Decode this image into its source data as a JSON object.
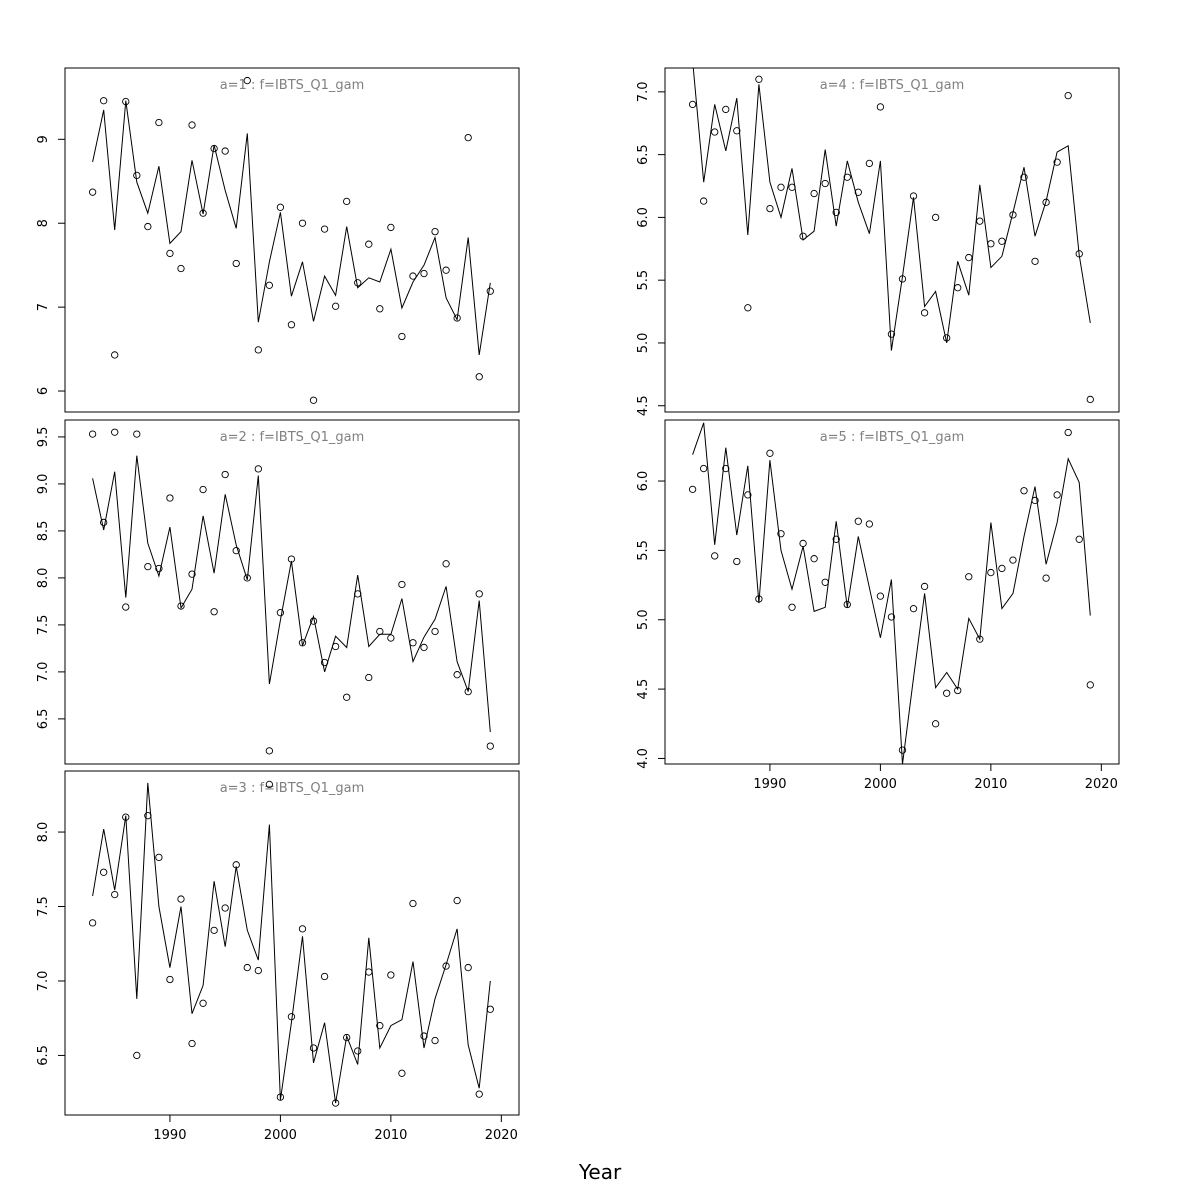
{
  "chart_data": {
    "type": "line",
    "xlabel": "Year",
    "xlim": [
      1980.5,
      2021.6
    ],
    "x_ticks": [
      1990,
      2000,
      2010,
      2020
    ],
    "x": [
      1983,
      1984,
      1985,
      1986,
      1987,
      1988,
      1989,
      1990,
      1991,
      1992,
      1993,
      1994,
      1995,
      1996,
      1997,
      1998,
      1999,
      2000,
      2001,
      2002,
      2003,
      2004,
      2005,
      2006,
      2007,
      2008,
      2009,
      2010,
      2011,
      2012,
      2013,
      2014,
      2015,
      2016,
      2017,
      2018,
      2019
    ],
    "panels": [
      {
        "title": "a=1  :  f=IBTS_Q1_gam",
        "ylim": [
          5.75,
          9.85
        ],
        "y_ticks": [
          "6",
          "7",
          "8",
          "9"
        ],
        "observed": [
          8.37,
          9.46,
          6.43,
          9.45,
          8.57,
          7.96,
          9.2,
          7.64,
          7.46,
          9.17,
          8.12,
          8.89,
          8.86,
          7.52,
          9.7,
          6.49,
          7.26,
          8.19,
          6.79,
          8.0,
          5.89,
          7.93,
          7.01,
          8.26,
          7.29,
          7.75,
          6.98,
          7.95,
          6.65,
          7.37,
          7.4,
          7.9,
          7.44,
          6.87,
          9.02,
          6.17,
          7.19
        ],
        "fitted": [
          8.73,
          9.35,
          7.92,
          9.46,
          8.49,
          8.12,
          8.68,
          7.76,
          7.9,
          8.75,
          8.11,
          8.93,
          8.39,
          7.94,
          9.07,
          6.82,
          7.54,
          8.13,
          7.13,
          7.54,
          6.83,
          7.37,
          7.14,
          7.96,
          7.23,
          7.35,
          7.3,
          7.69,
          6.99,
          7.3,
          7.5,
          7.83,
          7.11,
          6.85,
          7.83,
          6.43,
          7.29
        ]
      },
      {
        "title": "a=2  :  f=IBTS_Q1_gam",
        "ylim": [
          6.02,
          9.68
        ],
        "y_ticks": [
          "6.5",
          "7.0",
          "7.5",
          "8.0",
          "8.5",
          "9.0",
          "9.5"
        ],
        "observed": [
          9.53,
          8.59,
          9.55,
          7.69,
          9.53,
          8.12,
          8.1,
          8.85,
          7.7,
          8.04,
          8.94,
          7.64,
          9.1,
          8.29,
          8.0,
          9.16,
          6.16,
          7.63,
          8.2,
          7.31,
          7.54,
          7.1,
          7.27,
          6.73,
          7.83,
          6.94,
          7.43,
          7.36,
          7.93,
          7.31,
          7.26,
          7.43,
          8.15,
          6.97,
          6.79,
          7.83,
          6.21
        ],
        "fitted": [
          9.06,
          8.51,
          9.13,
          7.79,
          9.3,
          8.37,
          8.02,
          8.54,
          7.68,
          7.88,
          8.66,
          8.05,
          8.89,
          8.35,
          7.98,
          9.09,
          6.87,
          7.55,
          8.18,
          7.28,
          7.59,
          7.0,
          7.38,
          7.26,
          8.03,
          7.27,
          7.4,
          7.4,
          7.78,
          7.11,
          7.37,
          7.56,
          7.91,
          7.11,
          6.79,
          7.76,
          6.36
        ]
      },
      {
        "title": "a=3  :  f=IBTS_Q1_gam",
        "ylim": [
          6.1,
          8.41
        ],
        "y_ticks": [
          "6.5",
          "7.0",
          "7.5",
          "8.0"
        ],
        "observed": [
          7.39,
          7.73,
          7.58,
          8.1,
          6.5,
          8.11,
          7.83,
          7.01,
          7.55,
          6.58,
          6.85,
          7.34,
          7.49,
          7.78,
          7.09,
          7.07,
          8.32,
          6.22,
          6.76,
          7.35,
          6.55,
          7.03,
          6.18,
          6.62,
          6.53,
          7.06,
          6.7,
          7.04,
          6.38,
          7.52,
          6.63,
          6.6,
          7.1,
          7.54,
          7.09,
          6.24,
          6.81
        ],
        "fitted": [
          7.57,
          8.02,
          7.61,
          8.11,
          6.88,
          8.33,
          7.5,
          7.09,
          7.5,
          6.78,
          6.97,
          7.67,
          7.23,
          7.77,
          7.34,
          7.14,
          8.05,
          6.2,
          6.72,
          7.3,
          6.45,
          6.72,
          6.18,
          6.63,
          6.44,
          7.29,
          6.55,
          6.7,
          6.74,
          7.13,
          6.55,
          6.88,
          7.11,
          7.35,
          6.57,
          6.28,
          7.0
        ]
      },
      {
        "title": "a=4  :  f=IBTS_Q1_gam",
        "ylim": [
          4.45,
          7.19
        ],
        "y_ticks": [
          "4.5",
          "5.0",
          "5.5",
          "6.0",
          "6.5",
          "7.0"
        ],
        "observed": [
          6.9,
          6.13,
          6.68,
          6.86,
          6.69,
          5.28,
          7.1,
          6.07,
          6.24,
          6.24,
          5.85,
          6.19,
          6.27,
          6.04,
          6.32,
          6.2,
          6.43,
          6.88,
          5.07,
          5.51,
          6.17,
          5.24,
          6.0,
          5.04,
          5.44,
          5.68,
          5.97,
          5.79,
          5.81,
          6.02,
          6.32,
          5.65,
          6.12,
          6.44,
          6.97,
          5.71,
          4.55
        ],
        "fitted": [
          7.25,
          6.28,
          6.9,
          6.53,
          6.95,
          5.86,
          7.06,
          6.28,
          6.0,
          6.39,
          5.82,
          5.89,
          6.54,
          5.93,
          6.45,
          6.12,
          5.87,
          6.45,
          4.94,
          5.53,
          6.16,
          5.29,
          5.41,
          5.0,
          5.65,
          5.38,
          6.26,
          5.6,
          5.69,
          6.04,
          6.4,
          5.85,
          6.13,
          6.52,
          6.57,
          5.7,
          5.16
        ]
      },
      {
        "title": "a=5  :  f=IBTS_Q1_gam",
        "ylim": [
          3.96,
          6.44
        ],
        "y_ticks": [
          "4.0",
          "4.5",
          "5.0",
          "5.5",
          "6.0"
        ],
        "observed": [
          5.94,
          6.09,
          5.46,
          6.09,
          5.42,
          5.9,
          5.15,
          6.2,
          5.62,
          5.09,
          5.55,
          5.44,
          5.27,
          5.58,
          5.11,
          5.71,
          5.69,
          5.17,
          5.02,
          4.06,
          5.08,
          5.24,
          4.25,
          4.47,
          4.49,
          5.31,
          4.86,
          5.34,
          5.37,
          5.43,
          5.93,
          5.86,
          5.3,
          5.9,
          6.35,
          5.58,
          4.53
        ],
        "fitted": [
          6.19,
          6.42,
          5.54,
          6.24,
          5.61,
          6.11,
          5.12,
          6.15,
          5.5,
          5.22,
          5.53,
          5.06,
          5.09,
          5.71,
          5.09,
          5.6,
          5.23,
          4.87,
          5.29,
          3.96,
          4.58,
          5.19,
          4.51,
          4.62,
          4.5,
          5.01,
          4.86,
          5.7,
          5.08,
          5.19,
          5.6,
          5.96,
          5.4,
          5.7,
          6.16,
          5.99,
          5.03
        ]
      }
    ],
    "colors": {
      "title": "#808080",
      "line": "#000000",
      "points": "#000000"
    }
  }
}
